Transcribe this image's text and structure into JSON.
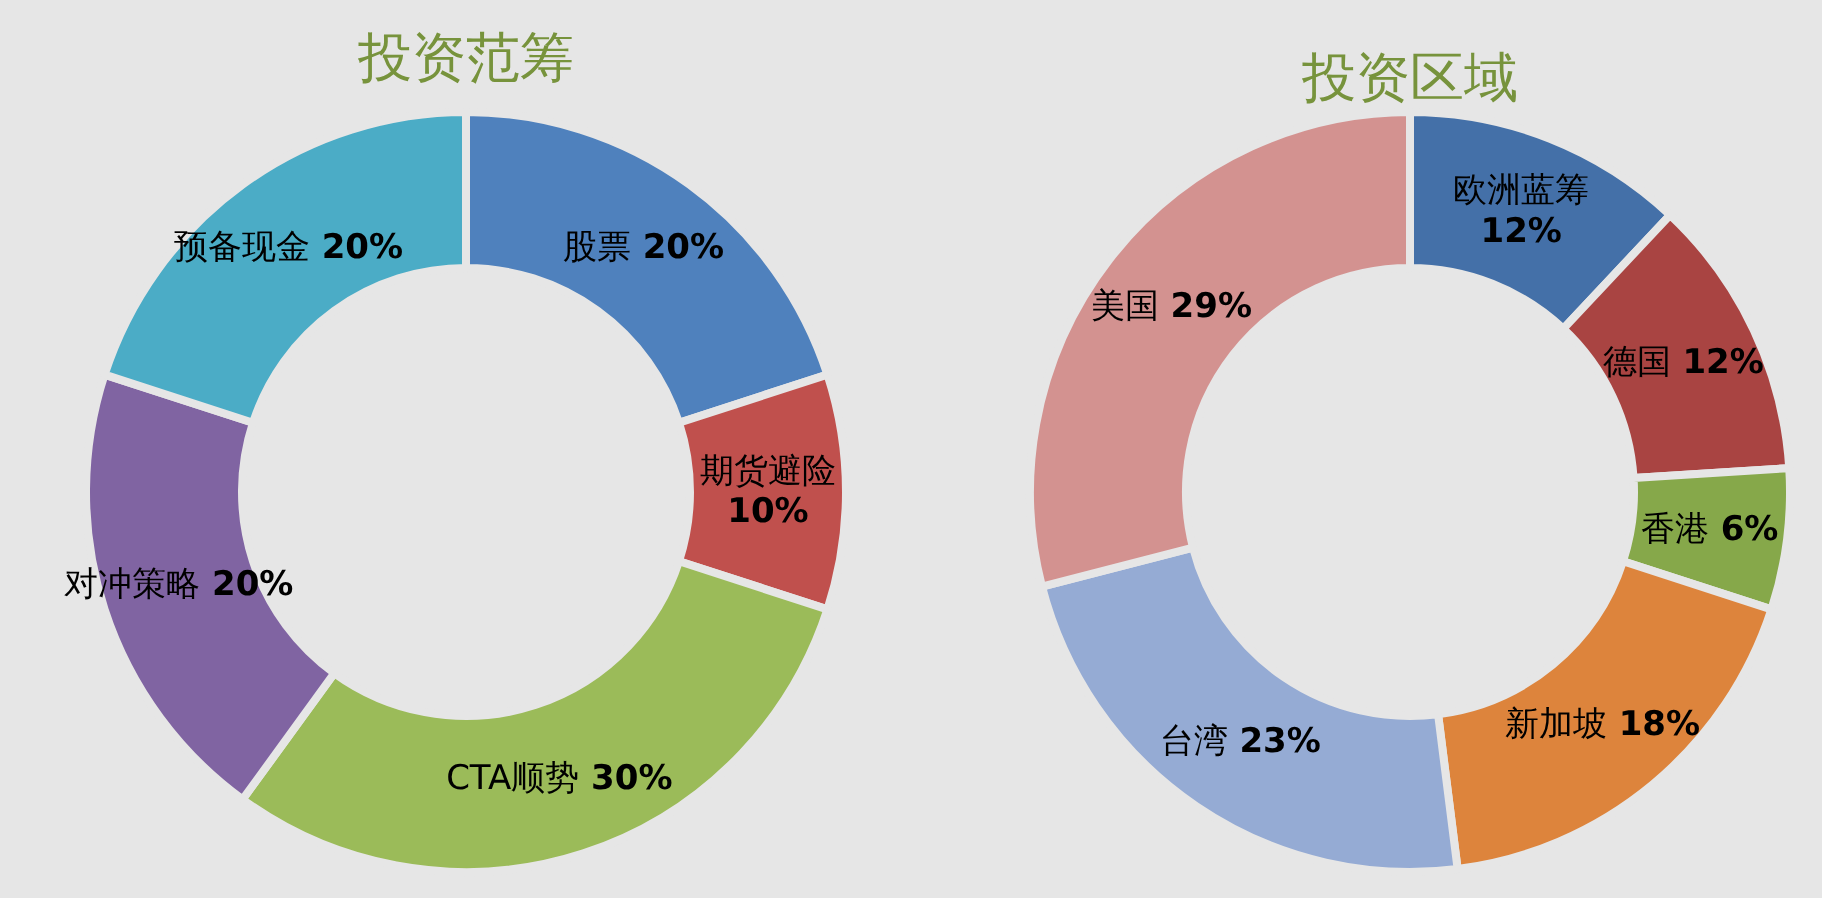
{
  "chart_data": [
    {
      "type": "donut",
      "title": "投资范筹",
      "categories": [
        "股票",
        "期货避险",
        "CTA顺势",
        "对冲策略",
        "预备现金"
      ],
      "values": [
        20,
        10,
        30,
        20,
        20
      ],
      "colors": [
        "#4f81bd",
        "#c0504d",
        "#9bbb59",
        "#8064a2",
        "#4bacc6"
      ],
      "value_labels": [
        "20%",
        "10%",
        "30%",
        "20%",
        "20%"
      ]
    },
    {
      "type": "donut",
      "title": "投资区域",
      "categories": [
        "欧洲蓝筹",
        "德国",
        "香港",
        "新加坡",
        "台湾",
        "美国"
      ],
      "values": [
        12,
        12,
        6,
        18,
        23,
        29
      ],
      "colors": [
        "#4470a8",
        "#a94442",
        "#86a84a",
        "#dd843c",
        "#95abd4",
        "#d39290"
      ],
      "value_labels": [
        "12%",
        "12%",
        "6%",
        "18%",
        "23%",
        "29%"
      ]
    }
  ]
}
